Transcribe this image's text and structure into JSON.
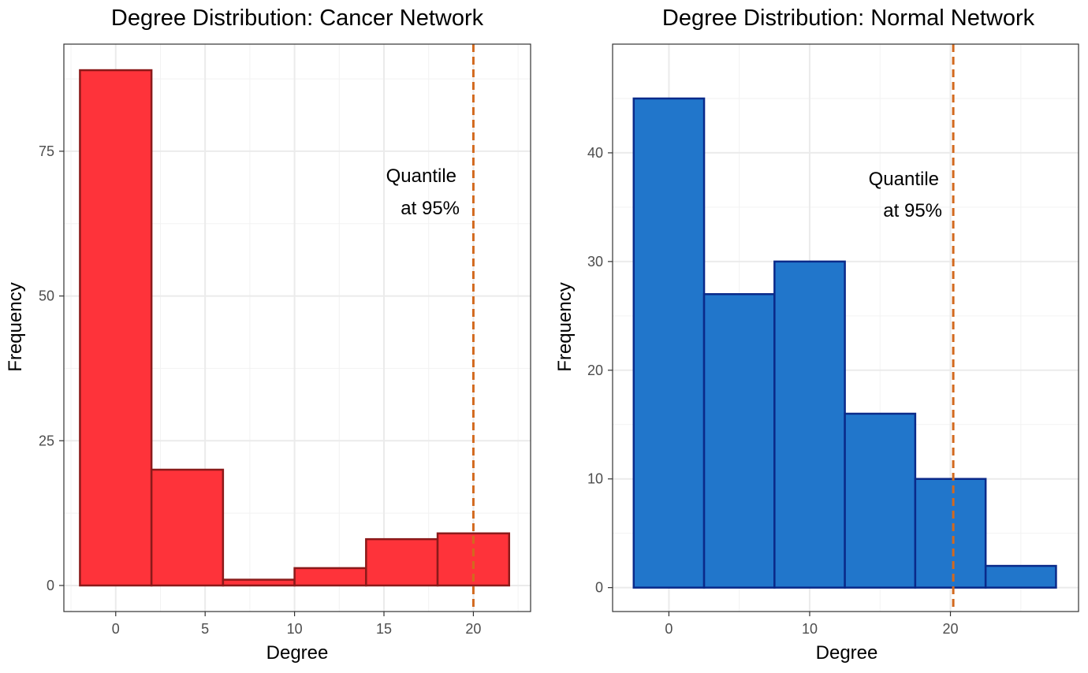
{
  "chart_data": [
    {
      "type": "bar",
      "title": "Degree Distribution: Cancer Network",
      "xlabel": "Degree",
      "ylabel": "Frequency",
      "xlim": [
        -2.9,
        23.2
      ],
      "ylim": [
        -4.5,
        93.5
      ],
      "x_ticks": [
        0,
        5,
        10,
        15,
        20
      ],
      "y_ticks": [
        0,
        25,
        50,
        75
      ],
      "x_tick_labels": [
        "0",
        "5",
        "10",
        "15",
        "20"
      ],
      "y_tick_labels": [
        "0",
        "25",
        "50",
        "75"
      ],
      "bins": [
        {
          "x0": -2,
          "x1": 2,
          "value": 89
        },
        {
          "x0": 2,
          "x1": 6,
          "value": 20
        },
        {
          "x0": 6,
          "x1": 10,
          "value": 1
        },
        {
          "x0": 10,
          "x1": 14,
          "value": 3
        },
        {
          "x0": 14,
          "x1": 18,
          "value": 8
        },
        {
          "x0": 18,
          "x1": 22,
          "value": 9
        }
      ],
      "quantile_line": {
        "x": 20
      },
      "annotation": {
        "line1": "Quantile",
        "line2": "at 95%"
      },
      "colors": {
        "fill": "#fe333a",
        "stroke": "#8b1a1a",
        "quantile": "#d2691e"
      },
      "grid": true
    },
    {
      "type": "bar",
      "title": "Degree Distribution: Normal Network",
      "xlabel": "Degree",
      "ylabel": "Frequency",
      "xlim": [
        -4,
        29.1
      ],
      "ylim": [
        -2.2,
        50
      ],
      "x_ticks": [
        0,
        10,
        20
      ],
      "y_ticks": [
        0,
        10,
        20,
        30,
        40
      ],
      "x_tick_labels": [
        "0",
        "10",
        "20"
      ],
      "y_tick_labels": [
        "0",
        "10",
        "20",
        "30",
        "40"
      ],
      "bins": [
        {
          "x0": -2.5,
          "x1": 2.5,
          "value": 45
        },
        {
          "x0": 2.5,
          "x1": 7.5,
          "value": 27
        },
        {
          "x0": 7.5,
          "x1": 12.5,
          "value": 30
        },
        {
          "x0": 12.5,
          "x1": 17.5,
          "value": 16
        },
        {
          "x0": 17.5,
          "x1": 22.5,
          "value": 10
        },
        {
          "x0": 22.5,
          "x1": 27.5,
          "value": 2
        }
      ],
      "quantile_line": {
        "x": 20.2
      },
      "annotation": {
        "line1": "Quantile",
        "line2": "at 95%"
      },
      "colors": {
        "fill": "#2176cb",
        "stroke": "#0a2a8a",
        "quantile": "#d2691e"
      },
      "grid": true
    }
  ]
}
